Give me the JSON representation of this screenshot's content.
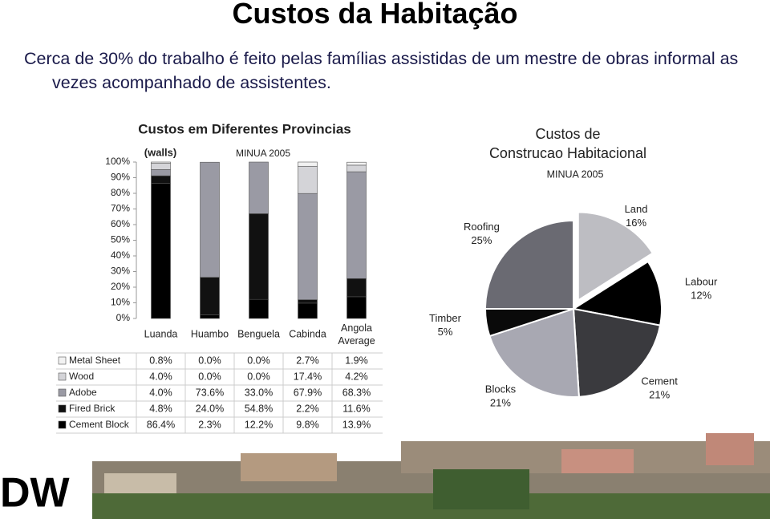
{
  "title": "Custos da Habitação",
  "text": "Cerca de 30%  do trabalho é feito pelas famílias assistidas de um mestre de obras informal as vezes acompanhado de assistentes.",
  "logo": "DW",
  "chart_data": [
    {
      "type": "bar",
      "stacked": true,
      "title": "Custos em Diferentes Provincias",
      "annotations": [
        "(walls)",
        "MINUA 2005"
      ],
      "categories": [
        "Luanda",
        "Huambo",
        "Benguela",
        "Cabinda",
        "Angola Average"
      ],
      "series": [
        {
          "name": "Metal Sheet",
          "color": "#f2f2f2",
          "values": [
            0.8,
            0.0,
            0.0,
            2.7,
            1.9
          ],
          "value_labels": [
            "0.8%",
            "0.0%",
            "0.0%",
            "2.7%",
            "1.9%"
          ]
        },
        {
          "name": "Wood",
          "color": "#d4d4d8",
          "values": [
            4.0,
            0.0,
            0.0,
            17.4,
            4.2
          ],
          "value_labels": [
            "4.0%",
            "0.0%",
            "0.0%",
            "17.4%",
            "4.2%"
          ]
        },
        {
          "name": "Adobe",
          "color": "#9a9aa4",
          "values": [
            4.0,
            73.6,
            33.0,
            67.9,
            68.3
          ],
          "value_labels": [
            "4.0%",
            "73.6%",
            "33.0%",
            "67.9%",
            "68.3%"
          ]
        },
        {
          "name": "Fired Brick",
          "color": "#111111",
          "values": [
            4.8,
            24.0,
            54.8,
            2.2,
            11.6
          ],
          "value_labels": [
            "4.8%",
            "24.0%",
            "54.8%",
            "2.2%",
            "11.6%"
          ]
        },
        {
          "name": "Cement Block",
          "color": "#000000",
          "values": [
            86.4,
            2.3,
            12.2,
            9.8,
            13.9
          ],
          "value_labels": [
            "86.4%",
            "2.3%",
            "12.2%",
            "9.8%",
            "13.9%"
          ]
        }
      ],
      "ylim": [
        0,
        100
      ],
      "yticks": [
        {
          "value": 0,
          "label": "0%"
        },
        {
          "value": 10,
          "label": "10%"
        },
        {
          "value": 20,
          "label": "20%"
        },
        {
          "value": 30,
          "label": "30%"
        },
        {
          "value": 40,
          "label": "40%"
        },
        {
          "value": 50,
          "label": "50%"
        },
        {
          "value": 60,
          "label": "60%"
        },
        {
          "value": 70,
          "label": "70%"
        },
        {
          "value": 80,
          "label": "80%"
        },
        {
          "value": 90,
          "label": "90%"
        },
        {
          "value": 100,
          "label": "100%"
        }
      ]
    },
    {
      "type": "pie",
      "title": "Custos de Construcao Habitacional",
      "annotations": [
        "MINUA 2005"
      ],
      "categories": [
        "Land",
        "Labour",
        "Cement",
        "Blocks",
        "Timber",
        "Roofing"
      ],
      "values": [
        16,
        12,
        21,
        21,
        5,
        25
      ],
      "value_labels": [
        "16%",
        "12%",
        "21%",
        "21%",
        "5%",
        "25%"
      ],
      "colors": [
        "#bdbdc2",
        "#000000",
        "#3a3a3e",
        "#a8a8b2",
        "#0a0a0a",
        "#6a6a72"
      ],
      "exploded": "Land"
    }
  ]
}
